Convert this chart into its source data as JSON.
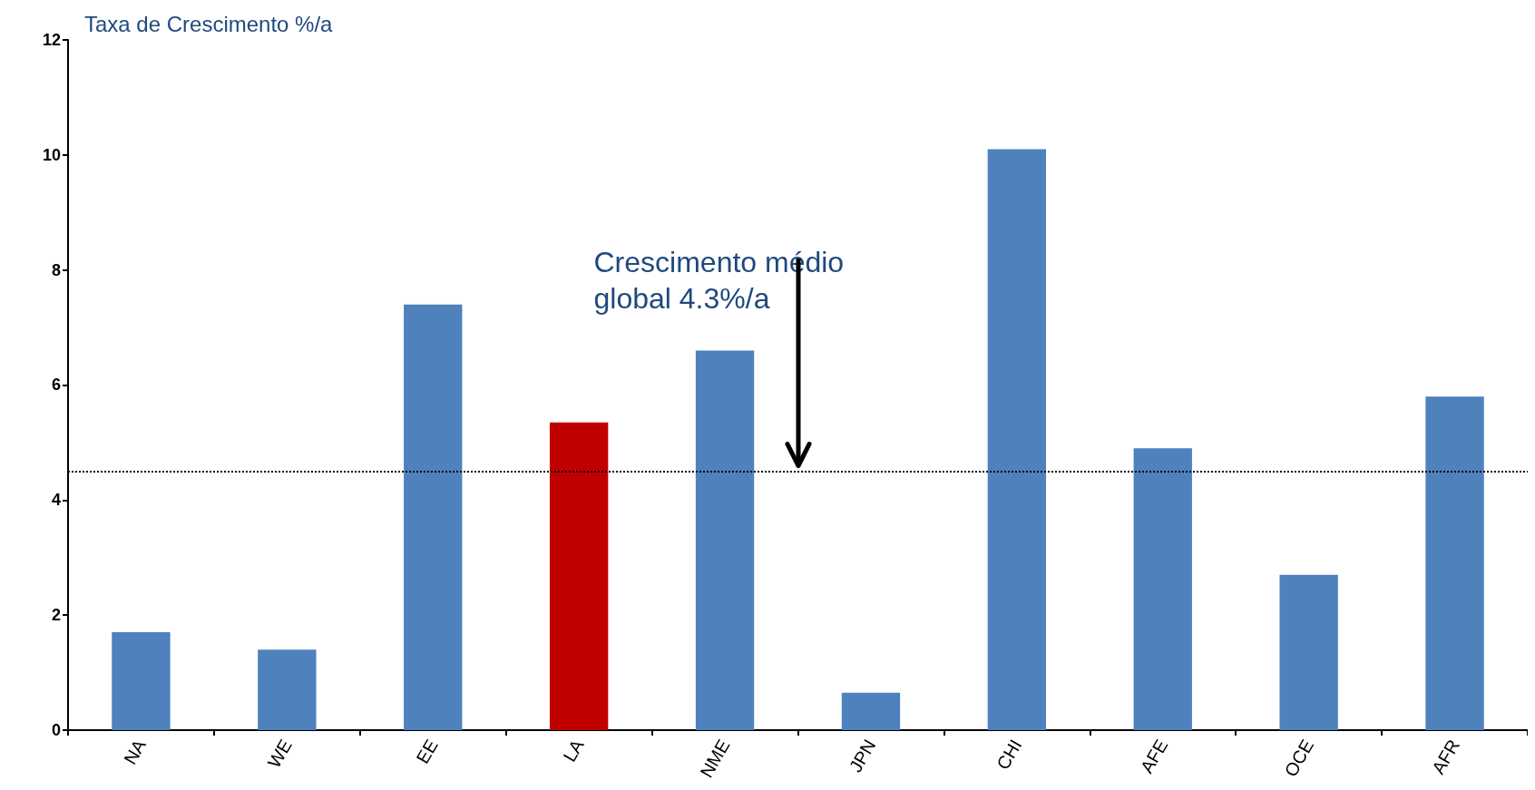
{
  "chart_data": {
    "type": "bar",
    "ylabel": "Taxa de Crescimento %/a",
    "categories": [
      "NA",
      "WE",
      "EE",
      "LA",
      "NME",
      "JPN",
      "CHI",
      "AFE",
      "OCE",
      "AFR"
    ],
    "values": [
      1.7,
      1.4,
      7.4,
      5.35,
      6.6,
      0.65,
      10.1,
      4.9,
      2.7,
      5.8
    ],
    "colors": [
      "#4f81bd",
      "#4f81bd",
      "#4f81bd",
      "#c00000",
      "#4f81bd",
      "#4f81bd",
      "#4f81bd",
      "#4f81bd",
      "#4f81bd",
      "#4f81bd"
    ],
    "ylim": [
      0,
      12
    ],
    "yticks": [
      0,
      2,
      4,
      6,
      8,
      10,
      12
    ],
    "ref_lines": [
      {
        "axis": "y",
        "value": 4.5,
        "color": "#000000",
        "line_style": "dotted"
      }
    ],
    "annotations": [
      "Crescimento médio global 4.3%/a"
    ]
  }
}
